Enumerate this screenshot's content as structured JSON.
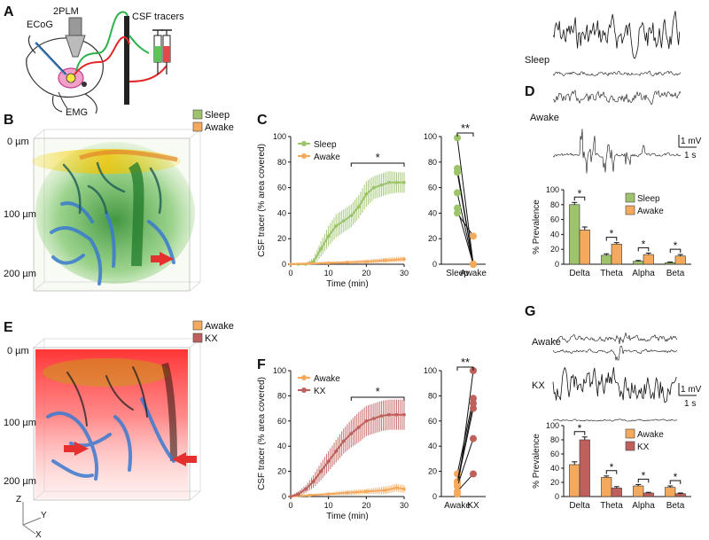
{
  "panels": {
    "A": "A",
    "B": "B",
    "C": "C",
    "D": "D",
    "E": "E",
    "F": "F",
    "G": "G"
  },
  "panel_A": {
    "labels": {
      "ecog": "ECoG",
      "twoplm": "2PLM",
      "emg": "EMG",
      "csf": "CSF tracers"
    }
  },
  "panel_B": {
    "legend": [
      "Sleep",
      "Awake"
    ],
    "depth": [
      "0 µm",
      "100 µm",
      "200 µm"
    ]
  },
  "panel_E": {
    "legend": [
      "Awake",
      "KX"
    ],
    "depth": [
      "0 µm",
      "100 µm",
      "200 µm"
    ],
    "axes": [
      "Z",
      "Y",
      "X"
    ]
  },
  "panel_D": {
    "traces": [
      "Sleep",
      "Awake"
    ],
    "scale": {
      "v": "1 mV",
      "t": "1 s"
    }
  },
  "panel_G": {
    "traces": [
      "Awake",
      "KX"
    ],
    "scale": {
      "v": "1 mV",
      "t": "1 s"
    }
  },
  "colors": {
    "sleep": "#9dc46b",
    "awake": "#f4a95d",
    "kx": "#c0605c"
  },
  "chart_data": [
    {
      "id": "C_time",
      "type": "line",
      "xlabel": "Time (min)",
      "ylabel": "CSF tracer (% area covered)",
      "xlim": [
        0,
        30
      ],
      "ylim": [
        0,
        100
      ],
      "xticks": [
        0,
        10,
        20,
        30
      ],
      "yticks": [
        0,
        20,
        40,
        60,
        80,
        100
      ],
      "sig": "*",
      "sig_range": [
        16,
        30
      ],
      "series": [
        {
          "name": "Sleep",
          "color": "#9dc46b",
          "x": [
            0,
            2,
            4,
            6,
            8,
            10,
            12,
            14,
            16,
            18,
            20,
            22,
            24,
            26,
            28,
            30
          ],
          "y": [
            0,
            0,
            0,
            2,
            12,
            22,
            30,
            34,
            38,
            45,
            55,
            60,
            62,
            64,
            64,
            64
          ],
          "err": [
            1,
            1,
            1,
            3,
            6,
            8,
            9,
            9,
            9,
            9,
            10,
            9,
            9,
            9,
            8,
            8
          ]
        },
        {
          "name": "Awake",
          "color": "#f4a95d",
          "x": [
            0,
            5,
            10,
            15,
            20,
            25,
            30
          ],
          "y": [
            0,
            0.5,
            1,
            1.5,
            2,
            3,
            4
          ],
          "err": [
            1,
            1,
            1,
            1,
            1.5,
            2,
            2
          ]
        }
      ]
    },
    {
      "id": "C_pair",
      "type": "scatter",
      "ylim": [
        0,
        100
      ],
      "yticks": [
        0,
        20,
        40,
        60,
        80,
        100
      ],
      "categories": [
        "Sleep",
        "Awake"
      ],
      "sig": "**",
      "colors": [
        "#9dc46b",
        "#f4a95d"
      ],
      "pairs": [
        [
          99,
          0
        ],
        [
          75,
          0
        ],
        [
          72,
          0
        ],
        [
          56,
          0
        ],
        [
          44,
          0
        ],
        [
          40,
          22
        ]
      ]
    },
    {
      "id": "D_bar",
      "type": "bar",
      "ylabel": "% Prevalence",
      "ylim": [
        0,
        100
      ],
      "yticks": [
        0,
        20,
        40,
        60,
        80,
        100
      ],
      "categories": [
        "Delta",
        "Theta",
        "Alpha",
        "Beta"
      ],
      "sig": "*",
      "series": [
        {
          "name": "Sleep",
          "color": "#9dc46b",
          "values": [
            80,
            12,
            4,
            2
          ],
          "err": [
            3,
            2,
            1,
            1
          ]
        },
        {
          "name": "Awake",
          "color": "#f4a95d",
          "values": [
            46,
            27,
            13,
            11
          ],
          "err": [
            4,
            2,
            2,
            2
          ]
        }
      ]
    },
    {
      "id": "F_time",
      "type": "line",
      "xlabel": "Time (min)",
      "ylabel": "CSF tracer (% area covered)",
      "xlim": [
        0,
        30
      ],
      "ylim": [
        0,
        100
      ],
      "xticks": [
        0,
        10,
        20,
        30
      ],
      "yticks": [
        0,
        20,
        40,
        60,
        80,
        100
      ],
      "sig": "*",
      "sig_range": [
        16,
        30
      ],
      "series": [
        {
          "name": "Awake",
          "color": "#f4a95d",
          "x": [
            0,
            5,
            10,
            15,
            20,
            25,
            28,
            30
          ],
          "y": [
            0,
            1,
            2,
            3,
            4,
            5,
            7,
            6
          ],
          "err": [
            1,
            1,
            1,
            2,
            2,
            3,
            3,
            3
          ]
        },
        {
          "name": "KX",
          "color": "#c0605c",
          "x": [
            0,
            2,
            4,
            6,
            8,
            10,
            12,
            14,
            16,
            18,
            20,
            22,
            24,
            26,
            28,
            30
          ],
          "y": [
            0,
            2,
            6,
            12,
            20,
            28,
            36,
            44,
            50,
            55,
            60,
            62,
            64,
            65,
            65,
            65
          ],
          "err": [
            1,
            2,
            3,
            5,
            7,
            8,
            9,
            10,
            11,
            12,
            12,
            12,
            12,
            12,
            12,
            12
          ]
        }
      ]
    },
    {
      "id": "F_pair",
      "type": "scatter",
      "ylim": [
        0,
        100
      ],
      "yticks": [
        0,
        20,
        40,
        60,
        80,
        100
      ],
      "categories": [
        "Awake",
        "KX"
      ],
      "sig": "**",
      "colors": [
        "#f4a95d",
        "#c0605c"
      ],
      "pairs": [
        [
          2,
          100
        ],
        [
          18,
          78
        ],
        [
          12,
          74
        ],
        [
          10,
          70
        ],
        [
          8,
          46
        ],
        [
          4,
          18
        ]
      ]
    },
    {
      "id": "G_bar",
      "type": "bar",
      "ylabel": "% Prevalence",
      "ylim": [
        0,
        100
      ],
      "yticks": [
        0,
        20,
        40,
        60,
        80,
        100
      ],
      "categories": [
        "Delta",
        "Theta",
        "Alpha",
        "Beta"
      ],
      "sig": "*",
      "series": [
        {
          "name": "Awake",
          "color": "#f4a95d",
          "values": [
            45,
            27,
            15,
            13
          ],
          "err": [
            4,
            2,
            2,
            2
          ]
        },
        {
          "name": "KX",
          "color": "#c0605c",
          "values": [
            80,
            12,
            5,
            4
          ],
          "err": [
            4,
            2,
            1,
            1
          ]
        }
      ]
    }
  ]
}
